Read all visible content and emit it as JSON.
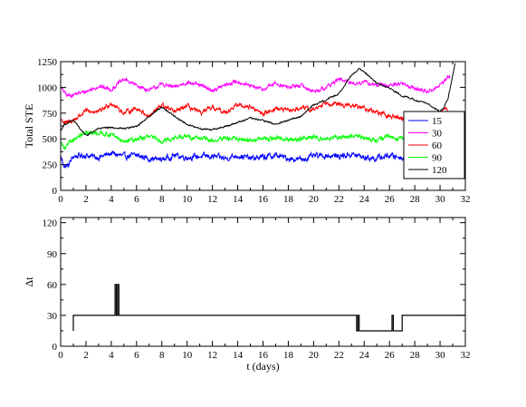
{
  "chart_data": [
    {
      "type": "line",
      "title": "",
      "xlabel": "",
      "ylabel": "Total STE",
      "xlim": [
        0,
        32
      ],
      "ylim": [
        0,
        1250
      ],
      "x_ticks": [
        "0",
        "2",
        "4",
        "6",
        "8",
        "10",
        "12",
        "14",
        "16",
        "18",
        "20",
        "22",
        "24",
        "26",
        "28",
        "30",
        "32"
      ],
      "y_ticks": [
        "0",
        "250",
        "500",
        "750",
        "1000",
        "1250"
      ],
      "grid": false,
      "legend_position": "right",
      "series": [
        {
          "name": "15",
          "color": "#0000ff",
          "noise": 45,
          "x": [
            0,
            0.3,
            0.6,
            1,
            2,
            3,
            4,
            5,
            6,
            7,
            8,
            9,
            10,
            11,
            12,
            13,
            14,
            15,
            16,
            17,
            18,
            19,
            20,
            21,
            22,
            23,
            24,
            25,
            26,
            27,
            28,
            29,
            29.6,
            30.2,
            30.6
          ],
          "values": [
            330,
            230,
            240,
            330,
            340,
            320,
            360,
            330,
            340,
            310,
            300,
            340,
            320,
            330,
            330,
            310,
            340,
            310,
            320,
            340,
            310,
            300,
            330,
            340,
            330,
            350,
            320,
            310,
            340,
            320,
            310,
            340,
            300,
            380,
            420
          ]
        },
        {
          "name": "30",
          "color": "#ff00ff",
          "noise": 30,
          "x": [
            0,
            0.5,
            1,
            2,
            3,
            4,
            5,
            6,
            7,
            8,
            9,
            10,
            11,
            12,
            13,
            14,
            15,
            16,
            17,
            18,
            19,
            20,
            21,
            22,
            23,
            24,
            25,
            26,
            27,
            28,
            29,
            29.8,
            30.5,
            30.8
          ],
          "values": [
            1000,
            920,
            930,
            960,
            1010,
            980,
            1080,
            1020,
            970,
            1030,
            1000,
            1050,
            1020,
            970,
            1020,
            1060,
            1010,
            980,
            1040,
            1000,
            1020,
            960,
            1000,
            1080,
            1040,
            1050,
            1020,
            1020,
            1040,
            990,
            960,
            1000,
            1080,
            1120
          ]
        },
        {
          "name": "60",
          "color": "#ff0000",
          "noise": 35,
          "x": [
            0,
            0.4,
            1,
            2,
            3,
            4,
            5,
            6,
            7,
            8,
            9,
            10,
            11,
            12,
            13,
            14,
            15,
            16,
            17,
            18,
            19,
            20,
            21,
            22,
            23,
            24,
            25,
            26,
            27,
            28,
            29,
            29.8,
            30.5,
            30.8
          ],
          "values": [
            690,
            650,
            680,
            770,
            760,
            850,
            750,
            800,
            720,
            830,
            760,
            820,
            750,
            800,
            760,
            830,
            810,
            740,
            800,
            770,
            800,
            780,
            860,
            830,
            820,
            800,
            760,
            720,
            700,
            710,
            690,
            740,
            800,
            650
          ]
        },
        {
          "name": "90",
          "color": "#00ff00",
          "noise": 35,
          "x": [
            0,
            0.3,
            1,
            2,
            3,
            4,
            5,
            6,
            7,
            8,
            9,
            10,
            11,
            12,
            13,
            14,
            15,
            16,
            17,
            18,
            19,
            20,
            21,
            22,
            23,
            24,
            25,
            26,
            27,
            28,
            29,
            29.6,
            30.2,
            30.6
          ],
          "values": [
            470,
            400,
            500,
            550,
            560,
            540,
            470,
            500,
            520,
            480,
            510,
            520,
            510,
            480,
            500,
            500,
            490,
            500,
            510,
            490,
            500,
            520,
            500,
            510,
            530,
            510,
            490,
            520,
            500,
            480,
            510,
            470,
            510,
            520
          ]
        },
        {
          "name": "120",
          "color": "#000000",
          "noise": 12,
          "x": [
            0,
            0.3,
            1,
            2,
            3,
            4,
            5,
            6,
            7,
            8,
            9,
            10,
            11,
            12,
            13,
            14,
            15,
            16,
            17,
            18,
            19,
            20,
            21,
            22,
            23,
            23.6,
            24,
            25,
            26,
            27,
            28,
            28.5,
            29,
            29.5,
            30,
            30.3,
            30.6,
            30.9,
            31.2
          ],
          "values": [
            580,
            640,
            680,
            530,
            600,
            610,
            600,
            620,
            720,
            810,
            720,
            640,
            600,
            590,
            620,
            660,
            700,
            680,
            640,
            680,
            720,
            830,
            880,
            940,
            1120,
            1180,
            1150,
            1040,
            990,
            920,
            880,
            860,
            840,
            800,
            770,
            800,
            880,
            1050,
            1240
          ]
        }
      ]
    },
    {
      "type": "line",
      "title": "",
      "xlabel": "t (days)",
      "ylabel": "Δt",
      "xlim": [
        0,
        32
      ],
      "ylim": [
        0,
        125
      ],
      "x_ticks": [
        "0",
        "2",
        "4",
        "6",
        "8",
        "10",
        "12",
        "14",
        "16",
        "18",
        "20",
        "22",
        "24",
        "26",
        "28",
        "30",
        "32"
      ],
      "y_ticks": [
        "0",
        "30",
        "60",
        "90",
        "120"
      ],
      "grid": false,
      "series": [
        {
          "color": "#000000",
          "x": [
            1.0,
            1.0,
            4.3,
            4.3,
            4.4,
            4.4,
            4.5,
            4.5,
            4.6,
            4.6,
            23.4,
            23.4,
            23.5,
            23.5,
            23.6,
            23.6,
            26.2,
            26.2,
            26.3,
            26.3,
            26.4,
            26.4,
            27.0,
            27.0,
            32
          ],
          "values": [
            15,
            30,
            30,
            60,
            60,
            30,
            30,
            60,
            60,
            30,
            30,
            15,
            15,
            30,
            30,
            15,
            15,
            30,
            30,
            15,
            15,
            15,
            15,
            30,
            30
          ]
        }
      ]
    }
  ]
}
